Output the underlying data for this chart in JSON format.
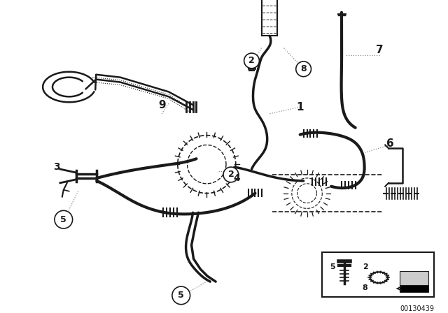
{
  "bg_color": "#ffffff",
  "line_color": "#1a1a1a",
  "dot_color": "#888888",
  "part_id": "00130439",
  "figsize": [
    6.4,
    4.48
  ],
  "dpi": 100
}
